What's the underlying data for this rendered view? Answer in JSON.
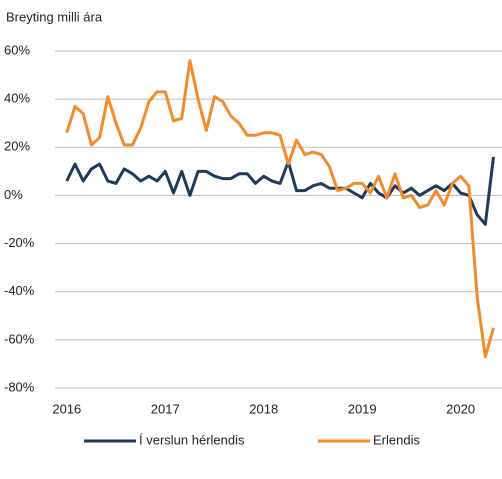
{
  "chart_data": {
    "type": "line",
    "title": "Breyting milli ára",
    "x": [
      2016,
      2016.0833,
      2016.1667,
      2016.25,
      2016.3333,
      2016.4167,
      2016.5,
      2016.5833,
      2016.6667,
      2016.75,
      2016.8333,
      2016.9167,
      2017,
      2017.0833,
      2017.1667,
      2017.25,
      2017.3333,
      2017.4167,
      2017.5,
      2017.5833,
      2017.6667,
      2017.75,
      2017.8333,
      2017.9167,
      2018,
      2018.0833,
      2018.1667,
      2018.25,
      2018.3333,
      2018.4167,
      2018.5,
      2018.5833,
      2018.6667,
      2018.75,
      2018.8333,
      2018.9167,
      2019,
      2019.0833,
      2019.1667,
      2019.25,
      2019.3333,
      2019.4167,
      2019.5,
      2019.5833,
      2019.6667,
      2019.75,
      2019.8333,
      2019.9167,
      2020,
      2020.0833,
      2020.1667,
      2020.25,
      2020.3333
    ],
    "series": [
      {
        "name": "Í verslun hérlendis",
        "color": "#1f3a5a",
        "values": [
          6,
          13,
          6,
          11,
          13,
          6,
          5,
          11,
          9,
          6,
          8,
          6,
          10,
          1,
          10,
          0,
          10,
          10,
          8,
          7,
          7,
          9,
          9,
          5,
          8,
          6,
          5,
          14,
          2,
          2,
          4,
          5,
          3,
          3,
          3,
          1,
          -1,
          5,
          1,
          -1,
          4,
          1,
          3,
          0,
          2,
          4,
          2,
          5,
          1,
          0,
          -8,
          -12,
          16
        ]
      },
      {
        "name": "Erlendis",
        "color": "#f28b2c",
        "values": [
          26,
          37,
          34,
          21,
          24,
          41,
          30,
          21,
          21,
          28,
          39,
          43,
          43,
          31,
          32,
          56,
          40,
          27,
          41,
          39,
          33,
          30,
          25,
          25,
          26,
          26,
          25,
          13,
          23,
          17,
          18,
          17,
          12,
          2,
          3,
          5,
          5,
          1,
          8,
          -1,
          9,
          -1,
          0,
          -5,
          -4,
          2,
          -4,
          5,
          8,
          4,
          -42,
          -67,
          -55
        ]
      }
    ],
    "xlim": [
      2015.88,
      2020.42
    ],
    "xticks": [
      2016,
      2017,
      2018,
      2019,
      2020
    ],
    "ylim": [
      -80,
      60
    ],
    "yticks": [
      {
        "value": -80,
        "label": "-80%"
      },
      {
        "value": -60,
        "label": "-60%"
      },
      {
        "value": -40,
        "label": "-40%"
      },
      {
        "value": -20,
        "label": "-20%"
      },
      {
        "value": 0,
        "label": "0%"
      },
      {
        "value": 20,
        "label": "20%"
      },
      {
        "value": 40,
        "label": "40%"
      },
      {
        "value": 60,
        "label": "60%"
      }
    ],
    "grid": true,
    "legend": "bottom"
  }
}
